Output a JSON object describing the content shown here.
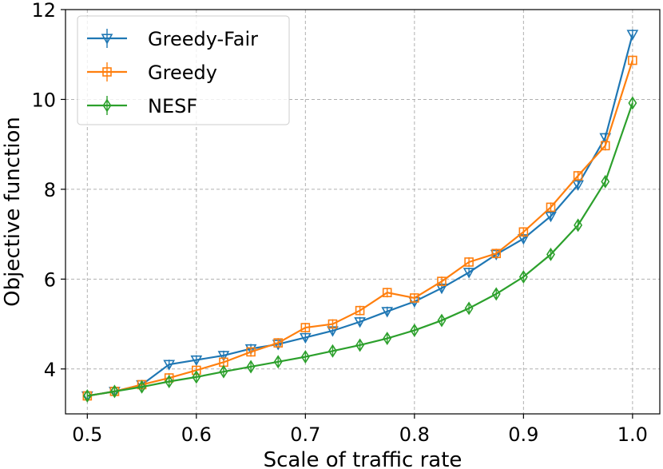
{
  "chart_data": {
    "type": "line",
    "title": "",
    "xlabel": "Scale of traffic rate",
    "ylabel": "Objective function",
    "xlim": [
      0.48,
      1.025
    ],
    "ylim": [
      3.0,
      12.0
    ],
    "xticks": [
      0.5,
      0.6,
      0.7,
      0.8,
      0.9,
      1.0
    ],
    "xtick_labels": [
      "0.5",
      "0.6",
      "0.7",
      "0.8",
      "0.9",
      "1.0"
    ],
    "yticks": [
      4,
      6,
      8,
      10,
      12
    ],
    "ytick_labels": [
      "4",
      "6",
      "8",
      "10",
      "12"
    ],
    "grid": true,
    "legend_position": "top-left",
    "x": [
      0.5,
      0.525,
      0.55,
      0.575,
      0.6,
      0.625,
      0.65,
      0.675,
      0.7,
      0.725,
      0.75,
      0.775,
      0.8,
      0.825,
      0.85,
      0.875,
      0.9,
      0.925,
      0.95,
      0.975,
      1.0
    ],
    "series": [
      {
        "name": "Greedy-Fair",
        "color": "#1f77b4",
        "marker": "triangle-down",
        "values": [
          3.4,
          3.5,
          3.65,
          4.1,
          4.2,
          4.3,
          4.45,
          4.55,
          4.7,
          4.85,
          5.05,
          5.28,
          5.5,
          5.8,
          6.15,
          6.55,
          6.9,
          7.4,
          8.1,
          9.15,
          11.45
        ]
      },
      {
        "name": "Greedy",
        "color": "#ff7f0e",
        "marker": "square",
        "values": [
          3.4,
          3.5,
          3.65,
          3.8,
          3.97,
          4.15,
          4.38,
          4.58,
          4.92,
          5.0,
          5.3,
          5.7,
          5.58,
          5.95,
          6.38,
          6.57,
          7.05,
          7.6,
          8.3,
          8.97,
          10.87
        ]
      },
      {
        "name": "NESF",
        "color": "#2ca02c",
        "marker": "diamond",
        "values": [
          3.4,
          3.5,
          3.6,
          3.72,
          3.82,
          3.94,
          4.05,
          4.16,
          4.27,
          4.4,
          4.53,
          4.68,
          4.86,
          5.08,
          5.35,
          5.67,
          6.05,
          6.55,
          7.2,
          8.17,
          9.92
        ]
      }
    ]
  }
}
